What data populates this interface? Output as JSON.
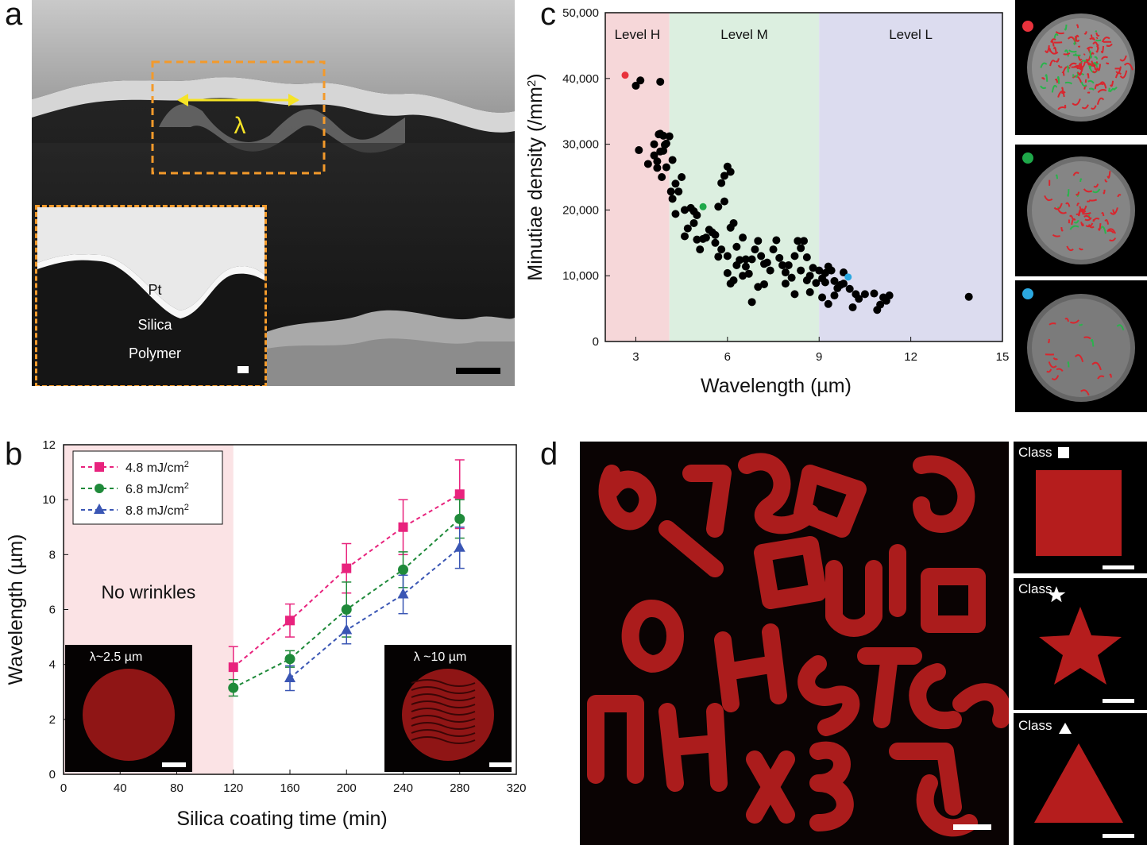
{
  "panels": {
    "a": {
      "letter": "a",
      "lambda_symbol": "λ",
      "inset_labels": {
        "pt": "Pt",
        "silica": "Silica",
        "polymer": "Polymer"
      }
    },
    "b": {
      "letter": "b",
      "no_wrinkles": "No wrinkles",
      "inset_left_label": "λ~2.5 µm",
      "inset_right_label": "λ ~10 µm"
    },
    "c": {
      "letter": "c",
      "levels": {
        "h": "Level H",
        "m": "Level M",
        "l": "Level L"
      }
    },
    "d": {
      "letter": "d",
      "class_square": "Class",
      "class_star": "Class",
      "class_triangle": "Class"
    }
  },
  "colors": {
    "levelH": "#f6d7d9",
    "levelM": "#dcefe0",
    "levelL": "#dcdcef",
    "no_wrinkle_band": "#fbe3e5",
    "red_dot": "#e8323c",
    "green_dot": "#1fa84a",
    "blue_dot": "#2ba8e0",
    "series_magenta": "#e8237d",
    "series_green": "#1f8a3a",
    "series_blue": "#3a56b4",
    "fluor_red": "#c0201f"
  },
  "chart_data": [
    {
      "type": "line",
      "panel": "b",
      "xlabel": "Silica coating time (min)",
      "ylabel": "Wavelength (µm)",
      "xlim": [
        0,
        320
      ],
      "ylim": [
        0,
        12
      ],
      "xticks": [
        0,
        40,
        80,
        120,
        160,
        200,
        240,
        280,
        320
      ],
      "yticks": [
        0,
        2,
        4,
        6,
        8,
        10,
        12
      ],
      "series": [
        {
          "name": "4.8 mJ/cm",
          "sup": "2",
          "marker": "square",
          "x": [
            120,
            160,
            200,
            240,
            280
          ],
          "y": [
            3.9,
            5.6,
            7.5,
            9.0,
            10.2
          ],
          "err": [
            0.75,
            0.6,
            0.9,
            1.0,
            1.25
          ]
        },
        {
          "name": "6.8 mJ/cm",
          "sup": "2",
          "marker": "circle",
          "x": [
            120,
            160,
            200,
            240,
            280
          ],
          "y": [
            3.15,
            4.2,
            6.0,
            7.45,
            9.3
          ],
          "err": [
            0.3,
            0.3,
            1.0,
            0.65,
            0.7
          ]
        },
        {
          "name": "8.8 mJ/cm",
          "sup": "2",
          "marker": "triangle",
          "x": [
            160,
            200,
            240,
            280
          ],
          "y": [
            3.5,
            5.25,
            6.55,
            8.25
          ],
          "err": [
            0.45,
            0.5,
            0.7,
            0.75
          ]
        }
      ],
      "legend": "top-left",
      "grid": false
    },
    {
      "type": "scatter",
      "panel": "c",
      "xlabel": "Wavelength (µm)",
      "ylabel": "Minutiae density (/mm",
      "ylabel_sup": "2",
      "ylabel_tail": ")",
      "xlim": [
        2,
        15
      ],
      "ylim": [
        0,
        50000
      ],
      "xticks": [
        3,
        6,
        9,
        12,
        15
      ],
      "yticks": [
        0,
        10000,
        20000,
        30000,
        40000,
        50000
      ],
      "ytick_labels": [
        "0",
        "10,000",
        "20,000",
        "30,000",
        "40,000",
        "50,000"
      ],
      "bands": [
        {
          "label": "Level H",
          "from": 2,
          "to": 4.1
        },
        {
          "label": "Level M",
          "from": 4.1,
          "to": 9
        },
        {
          "label": "Level L",
          "from": 9,
          "to": 15
        }
      ],
      "highlighted": [
        {
          "x": 2.65,
          "y": 40500,
          "color": "red"
        },
        {
          "x": 5.2,
          "y": 20500,
          "color": "green"
        },
        {
          "x": 9.95,
          "y": 9800,
          "color": "blue"
        }
      ],
      "points": [
        [
          3.0,
          38900
        ],
        [
          3.15,
          39700
        ],
        [
          3.8,
          39500
        ],
        [
          3.1,
          29100
        ],
        [
          3.4,
          27000
        ],
        [
          3.6,
          28300
        ],
        [
          3.7,
          26400
        ],
        [
          3.75,
          31500
        ],
        [
          3.8,
          28900
        ],
        [
          3.9,
          31300
        ],
        [
          4.0,
          30100
        ],
        [
          4.1,
          31200
        ],
        [
          3.85,
          25000
        ],
        [
          3.7,
          27400
        ],
        [
          3.6,
          30000
        ],
        [
          4.2,
          27600
        ],
        [
          3.95,
          29900
        ],
        [
          4.0,
          26500
        ],
        [
          3.8,
          31600
        ],
        [
          3.9,
          29000
        ],
        [
          4.15,
          22800
        ],
        [
          4.3,
          24000
        ],
        [
          4.5,
          25000
        ],
        [
          4.4,
          22800
        ],
        [
          4.2,
          21700
        ],
        [
          4.3,
          19400
        ],
        [
          4.6,
          20000
        ],
        [
          4.8,
          20300
        ],
        [
          4.9,
          18000
        ],
        [
          4.7,
          17200
        ],
        [
          5.0,
          19200
        ],
        [
          4.9,
          19800
        ],
        [
          4.6,
          16000
        ],
        [
          5.1,
          14000
        ],
        [
          5.3,
          15800
        ],
        [
          5.5,
          16600
        ],
        [
          5.4,
          17000
        ],
        [
          5.6,
          16200
        ],
        [
          5.2,
          15600
        ],
        [
          5.0,
          15500
        ],
        [
          5.7,
          20500
        ],
        [
          5.8,
          24100
        ],
        [
          5.9,
          25200
        ],
        [
          6.0,
          26600
        ],
        [
          6.1,
          25800
        ],
        [
          5.9,
          21300
        ],
        [
          6.1,
          17300
        ],
        [
          6.2,
          18000
        ],
        [
          5.8,
          14000
        ],
        [
          5.6,
          15000
        ],
        [
          5.7,
          12900
        ],
        [
          6.0,
          13000
        ],
        [
          6.3,
          14400
        ],
        [
          6.5,
          15800
        ],
        [
          6.6,
          12500
        ],
        [
          6.4,
          12400
        ],
        [
          6.8,
          12500
        ],
        [
          6.7,
          10300
        ],
        [
          6.9,
          14000
        ],
        [
          7.0,
          15300
        ],
        [
          7.1,
          13000
        ],
        [
          7.2,
          11800
        ],
        [
          6.3,
          11600
        ],
        [
          6.1,
          8800
        ],
        [
          6.0,
          10400
        ],
        [
          6.2,
          9300
        ],
        [
          6.5,
          10000
        ],
        [
          6.6,
          11400
        ],
        [
          6.8,
          6000
        ],
        [
          7.0,
          8300
        ],
        [
          7.2,
          8700
        ],
        [
          7.4,
          10800
        ],
        [
          7.3,
          12000
        ],
        [
          7.5,
          14000
        ],
        [
          7.6,
          15400
        ],
        [
          7.7,
          12700
        ],
        [
          7.8,
          11600
        ],
        [
          7.9,
          10500
        ],
        [
          8.0,
          11600
        ],
        [
          8.1,
          9700
        ],
        [
          8.2,
          13000
        ],
        [
          8.3,
          15300
        ],
        [
          8.4,
          14200
        ],
        [
          8.5,
          15300
        ],
        [
          8.6,
          12800
        ],
        [
          8.4,
          10800
        ],
        [
          8.6,
          9300
        ],
        [
          8.7,
          7500
        ],
        [
          8.8,
          11200
        ],
        [
          8.9,
          8900
        ],
        [
          9.0,
          10800
        ],
        [
          9.1,
          9600
        ],
        [
          9.2,
          10400
        ],
        [
          9.3,
          11400
        ],
        [
          9.4,
          10800
        ],
        [
          9.5,
          9200
        ],
        [
          9.6,
          8100
        ],
        [
          9.1,
          6700
        ],
        [
          9.3,
          5700
        ],
        [
          9.5,
          7000
        ],
        [
          9.7,
          8600
        ],
        [
          9.8,
          8800
        ],
        [
          10.0,
          8000
        ],
        [
          10.2,
          7200
        ],
        [
          10.3,
          6500
        ],
        [
          10.1,
          5200
        ],
        [
          10.5,
          7200
        ],
        [
          10.8,
          7300
        ],
        [
          11.0,
          5600
        ],
        [
          11.1,
          6700
        ],
        [
          11.2,
          6200
        ],
        [
          11.3,
          7000
        ],
        [
          10.9,
          4800
        ],
        [
          8.2,
          7200
        ],
        [
          7.9,
          8800
        ],
        [
          8.7,
          10000
        ],
        [
          9.2,
          9000
        ],
        [
          9.8,
          10500
        ],
        [
          13.9,
          6800
        ]
      ]
    }
  ]
}
